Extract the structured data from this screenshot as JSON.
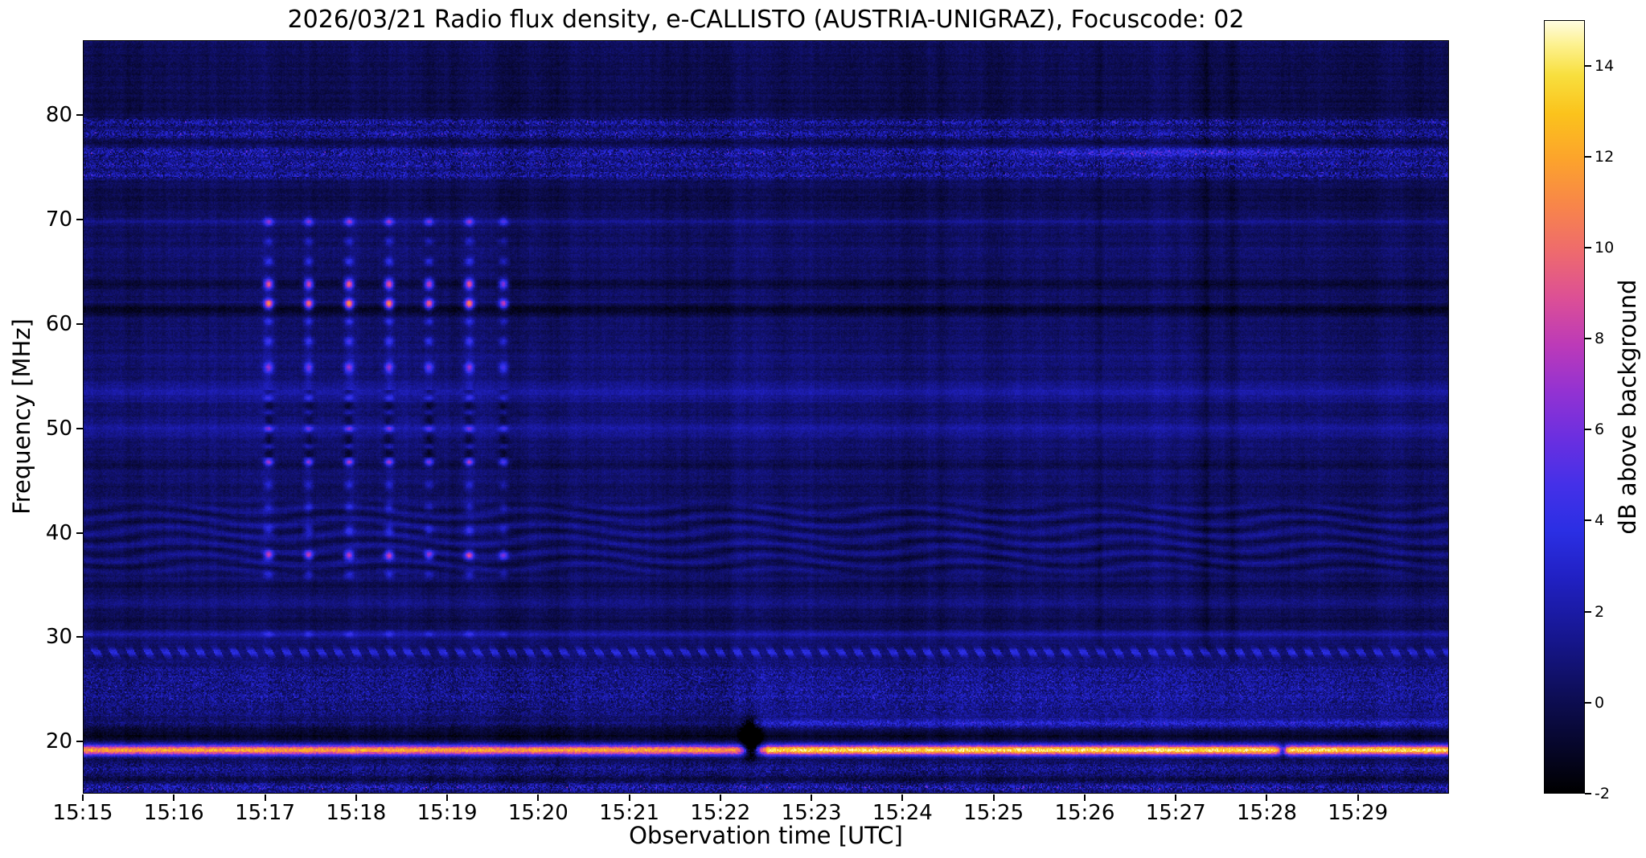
{
  "chart_data": {
    "type": "heatmap",
    "title": "2026/03/21  Radio flux density, e-CALLISTO (AUSTRIA-UNIGRAZ), Focuscode: 02",
    "xlabel": "Observation time [UTC]",
    "ylabel": "Frequency [MHz]",
    "x_ticks": [
      "15:15",
      "15:16",
      "15:17",
      "15:18",
      "15:19",
      "15:20",
      "15:21",
      "15:22",
      "15:23",
      "15:24",
      "15:25",
      "15:26",
      "15:27",
      "15:28",
      "15:29"
    ],
    "x_range_minutes": [
      0,
      15
    ],
    "y_ticks": [
      80,
      70,
      60,
      50,
      40,
      30,
      20
    ],
    "y_range_mhz": [
      15.0,
      87.2
    ],
    "grid": false,
    "colorbar": {
      "label": "dB above background",
      "ticks": [
        14,
        12,
        10,
        8,
        6,
        4,
        2,
        0,
        -2
      ],
      "range": [
        -2,
        15
      ],
      "colormap_stops": [
        [
          0,
          "#000000"
        ],
        [
          0.06,
          "#06062a"
        ],
        [
          0.12,
          "#0d0d52"
        ],
        [
          0.2,
          "#16168e"
        ],
        [
          0.28,
          "#2121c4"
        ],
        [
          0.34,
          "#2b2fe4"
        ],
        [
          0.4,
          "#4530e8"
        ],
        [
          0.46,
          "#6b2fe0"
        ],
        [
          0.52,
          "#9332d2"
        ],
        [
          0.58,
          "#bc3ab8"
        ],
        [
          0.64,
          "#dc4f96"
        ],
        [
          0.7,
          "#ee6a6e"
        ],
        [
          0.76,
          "#f8854a"
        ],
        [
          0.82,
          "#fca32c"
        ],
        [
          0.88,
          "#fbc31c"
        ],
        [
          0.93,
          "#f8df3e"
        ],
        [
          0.97,
          "#fdf291"
        ],
        [
          1,
          "#fffce0"
        ]
      ]
    },
    "features": {
      "background_db": 0.3,
      "bands": [
        {
          "f": 15.55,
          "w": 0.45,
          "amp": 3.2,
          "mode": "speckle"
        },
        {
          "f": 16.4,
          "w": 0.35,
          "amp": -1.0,
          "mode": "solid"
        },
        {
          "f": 17.3,
          "w": 0.8,
          "amp": 1.7,
          "mode": "speckle"
        },
        {
          "f": 18.35,
          "w": 0.3,
          "amp": -0.9,
          "mode": "solid"
        },
        {
          "f": 19.15,
          "w": 0.5,
          "amp": 11.5,
          "mode": "line19"
        },
        {
          "f": 20.6,
          "w": 0.9,
          "amp": -1.4,
          "mode": "solid"
        },
        {
          "f": 21.7,
          "w": 0.5,
          "amp": 3.4,
          "mode": "late"
        },
        {
          "f": 22.9,
          "w": 0.5,
          "amp": 1.1,
          "mode": "speckle"
        },
        {
          "f": 24.1,
          "w": 0.8,
          "amp": 1.7,
          "mode": "speckle"
        },
        {
          "f": 25.4,
          "w": 0.9,
          "amp": 1.5,
          "mode": "speckle"
        },
        {
          "f": 26.7,
          "w": 0.8,
          "amp": 1.4,
          "mode": "speckle"
        },
        {
          "f": 28.55,
          "w": 0.45,
          "amp": 3.0,
          "mode": "dash"
        },
        {
          "f": 30.25,
          "w": 0.4,
          "amp": 1.6,
          "mode": "solid"
        },
        {
          "f": 31.6,
          "w": 0.7,
          "amp": -0.5,
          "mode": "solid"
        },
        {
          "f": 33.3,
          "w": 0.35,
          "amp": 0.9,
          "mode": "solid"
        },
        {
          "f": 34.9,
          "w": 0.4,
          "amp": -0.7,
          "mode": "solid"
        },
        {
          "f": 39.0,
          "w": 4.0,
          "amp": 0.3,
          "mode": "solid"
        },
        {
          "f": 44.2,
          "w": 0.6,
          "amp": -0.5,
          "mode": "solid"
        },
        {
          "f": 46.6,
          "w": 0.35,
          "amp": -1.0,
          "mode": "solid"
        },
        {
          "f": 48.0,
          "w": 13.0,
          "amp": 0.3,
          "mode": "solid"
        },
        {
          "f": 50.0,
          "w": 0.8,
          "amp": 1.1,
          "mode": "solid"
        },
        {
          "f": 53.6,
          "w": 0.9,
          "amp": 1.3,
          "mode": "solid"
        },
        {
          "f": 56.8,
          "w": 0.5,
          "amp": 0.5,
          "mode": "solid"
        },
        {
          "f": 61.4,
          "w": 0.45,
          "amp": -1.7,
          "mode": "solid"
        },
        {
          "f": 63.9,
          "w": 0.35,
          "amp": -1.1,
          "mode": "solid"
        },
        {
          "f": 67.0,
          "w": 0.4,
          "amp": 0.4,
          "mode": "solid"
        },
        {
          "f": 69.9,
          "w": 0.35,
          "amp": 0.9,
          "mode": "solid"
        },
        {
          "f": 72.2,
          "w": 1.1,
          "amp": -0.5,
          "mode": "solid"
        },
        {
          "f": 74.4,
          "w": 0.4,
          "amp": 2.6,
          "mode": "speckle"
        },
        {
          "f": 75.4,
          "w": 0.4,
          "amp": 2.9,
          "mode": "speckle"
        },
        {
          "f": 76.5,
          "w": 0.5,
          "amp": 3.1,
          "mode": "pink"
        },
        {
          "f": 77.6,
          "w": 0.3,
          "amp": -0.8,
          "mode": "solid"
        },
        {
          "f": 78.3,
          "w": 0.45,
          "amp": 2.7,
          "mode": "speckle"
        },
        {
          "f": 79.4,
          "w": 0.4,
          "amp": 2.8,
          "mode": "speckle"
        },
        {
          "f": 81.2,
          "w": 1.8,
          "amp": -0.5,
          "mode": "solid"
        },
        {
          "f": 84.8,
          "w": 2.0,
          "amp": -0.35,
          "mode": "solid"
        },
        {
          "f": 24.0,
          "w": 4.0,
          "amp": 0.45,
          "mode": "latebroad"
        }
      ],
      "burst_train": {
        "description": "Periodic broadband RFI burst columns between 15:17:00 and 15:19:40",
        "centers_min": [
          2.03,
          2.47,
          2.91,
          3.35,
          3.79,
          4.23,
          4.61
        ],
        "weights": [
          1,
          0.9,
          1.05,
          1,
          0.92,
          1,
          0.75
        ],
        "width_min": 0.05,
        "blobs": [
          [
            30.3,
            0.3,
            2.2
          ],
          [
            36,
            0.4,
            2.5
          ],
          [
            37.9,
            0.45,
            7.5
          ],
          [
            40.3,
            0.5,
            3
          ],
          [
            42.5,
            0.45,
            2.2
          ],
          [
            44.6,
            0.4,
            2.4
          ],
          [
            46.8,
            0.35,
            6.5
          ],
          [
            48.3,
            0.3,
            3.2
          ],
          [
            50,
            0.35,
            6
          ],
          [
            51.6,
            0.3,
            3
          ],
          [
            53,
            0.35,
            4.5
          ],
          [
            55.9,
            0.5,
            5.5
          ],
          [
            58.4,
            0.4,
            3.5
          ],
          [
            60.3,
            0.35,
            3
          ],
          [
            62,
            0.5,
            10.5
          ],
          [
            63.9,
            0.5,
            9.5
          ],
          [
            66.1,
            0.4,
            3.5
          ],
          [
            68,
            0.4,
            2.5
          ],
          [
            69.9,
            0.4,
            5.5
          ]
        ],
        "dark_band": [
          47.3,
          53.7,
          2.3
        ],
        "broad": [
          53,
          9.5,
          0.9
        ],
        "f_window": [
          35,
          71.5
        ]
      },
      "wavy_band": {
        "f_min": 35.5,
        "f_max": 43.5,
        "amp": 0.8
      },
      "events": {
        "bright_line_mhz": 19.15,
        "line_blackout_min": 7.33,
        "line_gap_min": 13.17,
        "rfi_enhancement_min": 11.9,
        "dark_columns": [
          [
            11.15,
            0.04,
            0.5
          ],
          [
            12.0,
            0.035,
            0.4
          ],
          [
            12.33,
            0.055,
            0.95
          ],
          [
            12.62,
            0.05,
            0.8
          ]
        ]
      }
    }
  }
}
